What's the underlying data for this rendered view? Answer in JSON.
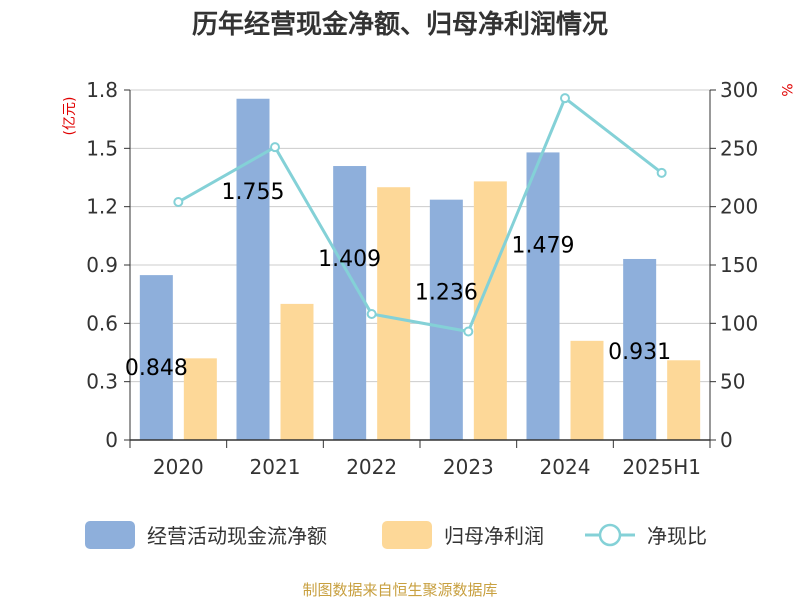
{
  "chart_data": {
    "type": "bar",
    "title": "历年经营现金净额、归母净利润情况",
    "categories": [
      "2020",
      "2021",
      "2022",
      "2023",
      "2024",
      "2025H1"
    ],
    "y_left": {
      "unit": "(亿元)",
      "ylim": [
        0,
        1.8
      ],
      "ticks": [
        "0",
        "0.3",
        "0.6",
        "0.9",
        "1.2",
        "1.5",
        "1.8"
      ]
    },
    "y_right": {
      "unit": "%",
      "ylim": [
        0,
        300
      ],
      "ticks": [
        "0",
        "50",
        "100",
        "150",
        "200",
        "250",
        "300"
      ]
    },
    "series": [
      {
        "name": "经营活动现金流净额",
        "kind": "bar",
        "axis": "left",
        "color": "#8eafdb",
        "values": [
          0.848,
          1.755,
          1.409,
          1.236,
          1.479,
          0.931
        ],
        "labels": [
          "0.848",
          "1.755",
          "1.409",
          "1.236",
          "1.479",
          "0.931"
        ]
      },
      {
        "name": "归母净利润",
        "kind": "bar",
        "axis": "left",
        "color": "#fdd898",
        "values": [
          0.42,
          0.7,
          1.3,
          1.33,
          0.51,
          0.41
        ]
      },
      {
        "name": "净现比",
        "kind": "line",
        "axis": "right",
        "color": "#84d1d7",
        "values": [
          204,
          251,
          108,
          93,
          293,
          229
        ]
      }
    ],
    "grid": true,
    "legend": "bottom"
  },
  "source": "制图数据来自恒生聚源数据库"
}
